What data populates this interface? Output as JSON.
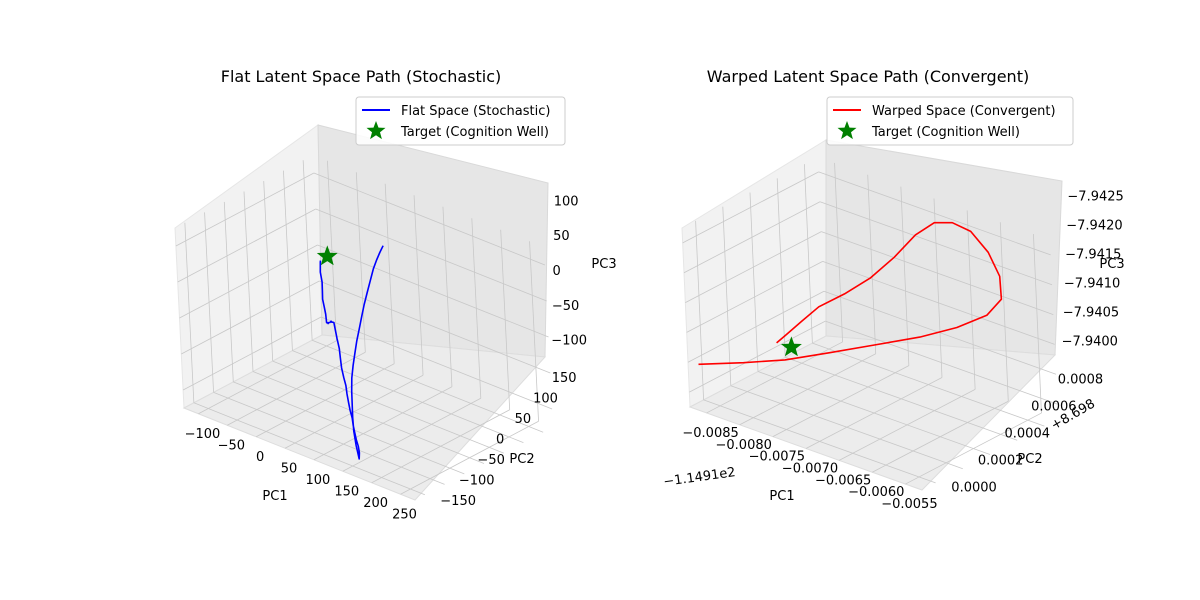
{
  "chart_data": [
    {
      "type": "line",
      "projection": "3d",
      "title": "Flat Latent Space Path (Stochastic)",
      "xlabel": "PC1",
      "ylabel": "PC2",
      "zlabel": "PC3",
      "xticks": [
        "−100",
        "−50",
        "0",
        "50",
        "100",
        "150",
        "200",
        "250"
      ],
      "yticks": [
        "−150",
        "−100",
        "−50",
        "0",
        "50",
        "100",
        "150"
      ],
      "zticks": [
        "−100",
        "−50",
        "0",
        "50",
        "100"
      ],
      "xlim": [
        -125,
        265
      ],
      "ylim": [
        -165,
        170
      ],
      "zlim": [
        -145,
        140
      ],
      "grid": true,
      "legend_position": "top-right",
      "series": [
        {
          "name": "Flat Space (Stochastic)",
          "color": "#0000ff",
          "marker": "line",
          "points": [
            [
              -85,
              120,
              5
            ],
            [
              -78,
              110,
              8
            ],
            [
              -70,
              98,
              0
            ],
            [
              -62,
              90,
              -10
            ],
            [
              -55,
              80,
              -18
            ],
            [
              -48,
              70,
              -25
            ],
            [
              -40,
              62,
              -32
            ],
            [
              -33,
              55,
              -38
            ],
            [
              -25,
              45,
              -45
            ],
            [
              -18,
              38,
              -40
            ],
            [
              -10,
              28,
              -35
            ],
            [
              -3,
              20,
              -28
            ],
            [
              5,
              12,
              -22
            ],
            [
              12,
              5,
              -15
            ],
            [
              20,
              -5,
              -10
            ],
            [
              28,
              -12,
              -5
            ],
            [
              35,
              -20,
              0
            ],
            [
              43,
              -28,
              -8
            ],
            [
              50,
              -35,
              -15
            ],
            [
              58,
              -42,
              -25
            ],
            [
              65,
              -50,
              -35
            ],
            [
              72,
              -58,
              -45
            ],
            [
              80,
              -65,
              -55
            ],
            [
              88,
              -72,
              -62
            ],
            [
              95,
              -80,
              -70
            ],
            [
              103,
              -88,
              -78
            ],
            [
              110,
              -95,
              -85
            ],
            [
              118,
              -102,
              -92
            ],
            [
              125,
              -110,
              -98
            ],
            [
              133,
              -118,
              -105
            ],
            [
              140,
              -125,
              -110
            ],
            [
              148,
              -132,
              -115
            ],
            [
              155,
              -140,
              -120
            ],
            [
              160,
              -148,
              -125
            ],
            [
              150,
              -140,
              -110
            ],
            [
              140,
              -130,
              -95
            ],
            [
              132,
              -120,
              -80
            ],
            [
              125,
              -110,
              -65
            ],
            [
              118,
              -100,
              -50
            ],
            [
              112,
              -90,
              -35
            ],
            [
              108,
              -80,
              -20
            ],
            [
              105,
              -70,
              -5
            ],
            [
              102,
              -60,
              10
            ],
            [
              100,
              -50,
              25
            ],
            [
              98,
              -40,
              40
            ],
            [
              96,
              -30,
              55
            ],
            [
              95,
              -20,
              70
            ],
            [
              94,
              -10,
              85
            ],
            [
              93,
              0,
              100
            ],
            [
              92,
              10,
              110
            ],
            [
              91,
              20,
              118
            ],
            [
              90,
              30,
              125
            ]
          ]
        },
        {
          "name": "Target (Cognition Well)",
          "color": "#008000",
          "marker": "star",
          "points": [
            [
              -80,
              130,
              10
            ]
          ]
        }
      ]
    },
    {
      "type": "line",
      "projection": "3d",
      "title": "Warped Latent Space Path (Convergent)",
      "xlabel": "PC1",
      "ylabel": "PC2",
      "zlabel": "PC3",
      "xticks": [
        "−0.0085",
        "−0.0080",
        "−0.0075",
        "−0.0070",
        "−0.0065",
        "−0.0060",
        "−0.0055"
      ],
      "yticks": [
        "0.0000",
        "0.0002",
        "0.0004",
        "0.0006",
        "0.0008"
      ],
      "zticks": [
        "−7.9400",
        "−7.9405",
        "−7.9410",
        "−7.9415",
        "−7.9420",
        "−7.9425"
      ],
      "x_offset_label": "−1.1491e2",
      "y_offset_label": "+8.698",
      "xlim": [
        -0.0087,
        -0.0054
      ],
      "ylim": [
        -5e-05,
        0.00095
      ],
      "zlim": [
        -7.9428,
        -7.9397
      ],
      "grid": true,
      "legend_position": "top-right",
      "series": [
        {
          "name": "Warped Space (Convergent)",
          "color": "#ff0000",
          "marker": "line",
          "points": [
            [
              -0.00865,
              0.0,
              -7.9421
            ],
            [
              -0.0082,
              0.0001,
              -7.942
            ],
            [
              -0.0078,
              0.0002,
              -7.9419
            ],
            [
              -0.0074,
              0.00032,
              -7.94175
            ],
            [
              -0.007,
              0.00045,
              -7.9416
            ],
            [
              -0.0066,
              0.00058,
              -7.94145
            ],
            [
              -0.0063,
              0.0007,
              -7.9413
            ],
            [
              -0.0061,
              0.00082,
              -7.94115
            ],
            [
              -0.006,
              0.00088,
              -7.9409
            ],
            [
              -0.00605,
              0.0009,
              -7.94055
            ],
            [
              -0.0062,
              0.0009,
              -7.9402
            ],
            [
              -0.0064,
              0.00088,
              -7.9399
            ],
            [
              -0.0066,
              0.00085,
              -7.9398
            ],
            [
              -0.0068,
              0.00082,
              -7.93985
            ],
            [
              -0.007,
              0.00078,
              -7.9401
            ],
            [
              -0.0072,
              0.00072,
              -7.9405
            ],
            [
              -0.0074,
              0.00064,
              -7.94085
            ],
            [
              -0.0076,
              0.00055,
              -7.9411
            ],
            [
              -0.0078,
              0.00046,
              -7.9413
            ],
            [
              -0.0079,
              0.00038,
              -7.9415
            ],
            [
              -0.008,
              0.00031,
              -7.9417
            ],
            [
              -0.00805,
              0.00027,
              -7.9418
            ]
          ]
        },
        {
          "name": "Target (Cognition Well)",
          "color": "#008000",
          "marker": "star",
          "points": [
            [
              -0.0079,
              0.0003,
              -7.94185
            ]
          ]
        }
      ]
    }
  ]
}
